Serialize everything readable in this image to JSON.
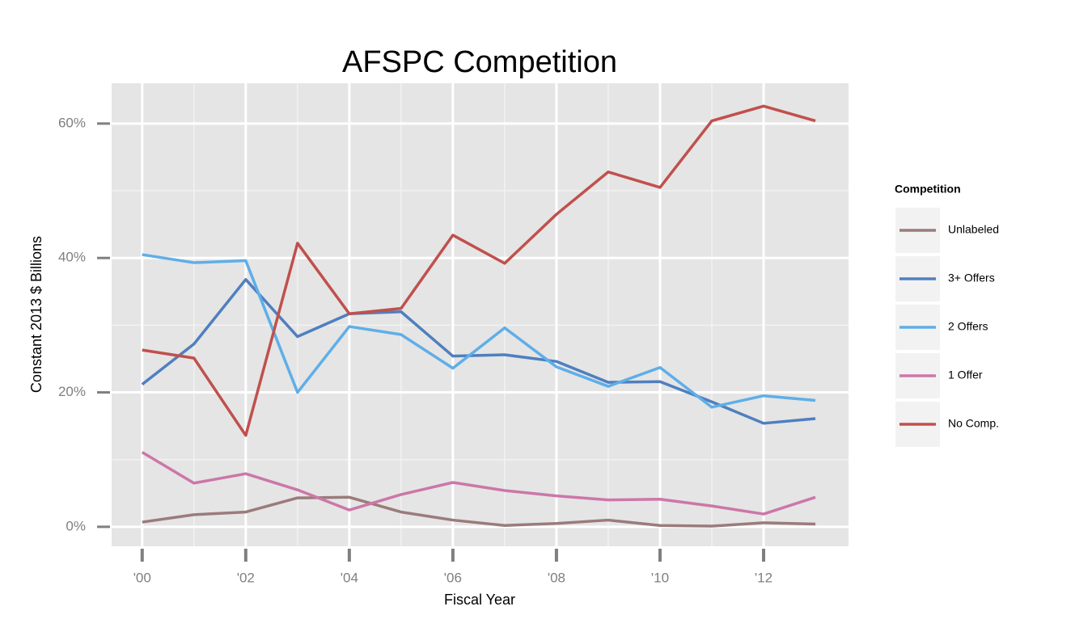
{
  "chart_data": {
    "type": "line",
    "title": "AFSPC Competition",
    "x_label": "Fiscal Year",
    "y_label": "Constant 2013 $ Billions",
    "legend_title": "Competition",
    "legend_position": "right",
    "grid": true,
    "x": [
      2000,
      2001,
      2002,
      2003,
      2004,
      2005,
      2006,
      2007,
      2008,
      2009,
      2010,
      2011,
      2012,
      2013
    ],
    "xlim": [
      1999.41,
      2013.64
    ],
    "xticks": [
      {
        "value": 2000,
        "label": "'00"
      },
      {
        "value": 2002,
        "label": "'02"
      },
      {
        "value": 2004,
        "label": "'04"
      },
      {
        "value": 2006,
        "label": "'06"
      },
      {
        "value": 2008,
        "label": "'08"
      },
      {
        "value": 2010,
        "label": "'10"
      },
      {
        "value": 2012,
        "label": "'12"
      }
    ],
    "ylim": [
      -2.9,
      66
    ],
    "yticks": [
      {
        "value": 0,
        "label": "0%"
      },
      {
        "value": 20,
        "label": "20%"
      },
      {
        "value": 40,
        "label": "40%"
      },
      {
        "value": 60,
        "label": "60%"
      }
    ],
    "series": [
      {
        "name": "Unlabeled",
        "color": "#9b7b7b",
        "values": [
          0.7,
          1.8,
          2.2,
          4.3,
          4.4,
          2.2,
          1.0,
          0.2,
          0.5,
          1.0,
          0.2,
          0.1,
          0.6,
          0.4
        ]
      },
      {
        "name": "3+ Offers",
        "color": "#4f7fbf",
        "values": [
          21.2,
          27.2,
          36.8,
          28.3,
          31.7,
          32.0,
          25.4,
          25.6,
          24.6,
          21.5,
          21.6,
          18.6,
          15.4,
          16.1
        ]
      },
      {
        "name": "2 Offers",
        "color": "#5faee8",
        "values": [
          40.5,
          39.3,
          39.6,
          20.0,
          29.8,
          28.6,
          23.6,
          29.6,
          23.8,
          20.9,
          23.7,
          17.8,
          19.5,
          18.8
        ]
      },
      {
        "name": "1 Offer",
        "color": "#cc77a8",
        "values": [
          11.1,
          6.5,
          7.9,
          5.5,
          2.5,
          4.8,
          6.6,
          5.4,
          4.6,
          4.0,
          4.1,
          3.1,
          1.9,
          4.4
        ]
      },
      {
        "name": "No Comp.",
        "color": "#c0504d",
        "values": [
          26.3,
          25.1,
          13.6,
          42.2,
          31.7,
          32.5,
          43.4,
          39.2,
          46.5,
          52.8,
          50.5,
          60.4,
          62.6,
          60.4
        ]
      }
    ]
  }
}
